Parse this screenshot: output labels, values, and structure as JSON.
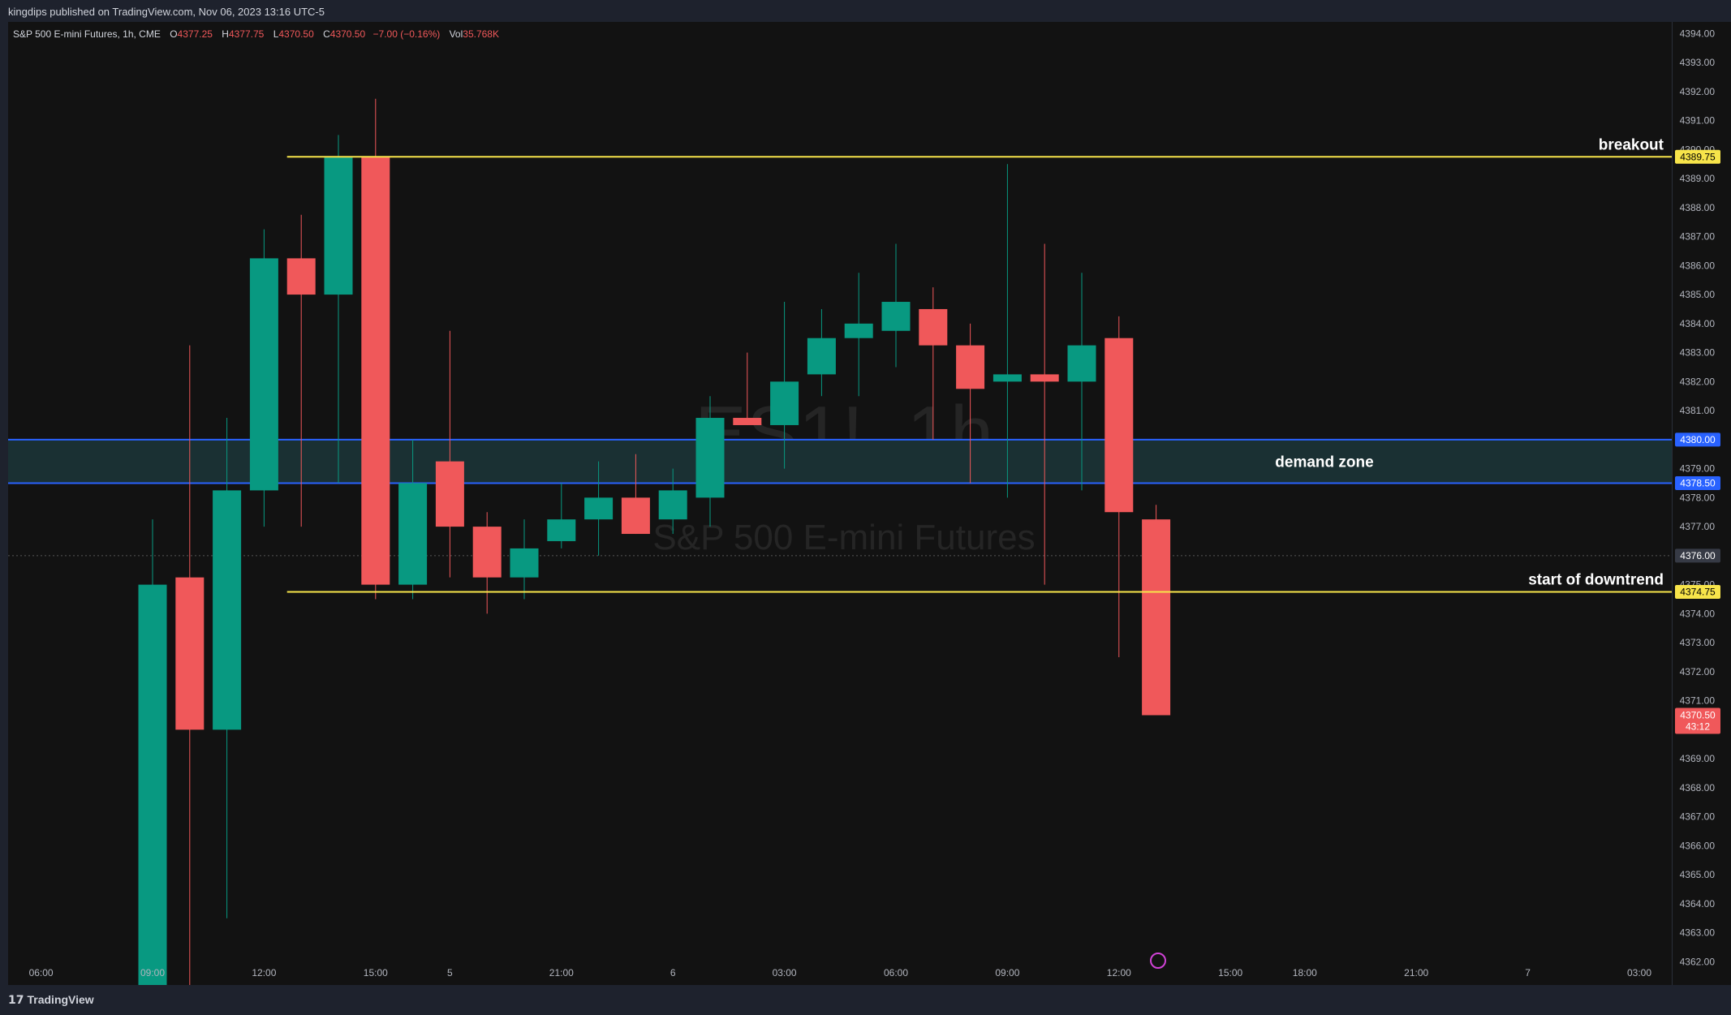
{
  "header": {
    "publish_line": "kingdips published on TradingView.com, Nov 06, 2023 13:16 UTC-5"
  },
  "legend": {
    "symbol": "S&P 500 E-mini Futures, 1h, CME",
    "open_label": "O",
    "open": "4377.25",
    "high_label": "H",
    "high": "4377.75",
    "low_label": "L",
    "low": "4370.50",
    "close_label": "C",
    "close": "4370.50",
    "change": "−7.00 (−0.16%)",
    "vol_label": "Vol",
    "vol": "35.768K"
  },
  "watermark": {
    "symbol": "ES1!, 1h",
    "name": "S&P 500 E-mini Futures"
  },
  "footer": {
    "brand": "TradingView",
    "logo_glyph": "17"
  },
  "colors": {
    "up": "#089981",
    "down": "#f0585a",
    "background": "#121212",
    "horizontal_line": "#f7e44a",
    "zone_border": "#2962ff",
    "zone_fill": "#1a3033"
  },
  "chart_data": {
    "type": "candlestick",
    "title": "",
    "ylim": [
      4361.2,
      4394.4
    ],
    "y_ticks": [
      4362,
      4363,
      4364,
      4365,
      4366,
      4367,
      4368,
      4369,
      4370,
      4371,
      4372,
      4373,
      4374,
      4375,
      4376,
      4377,
      4378,
      4379,
      4380,
      4381,
      4382,
      4383,
      4384,
      4385,
      4386,
      4387,
      4388,
      4389,
      4390,
      4391,
      4392,
      4393,
      4394
    ],
    "x_ticks": [
      {
        "label": "06:00",
        "idx": -3
      },
      {
        "label": "09:00",
        "idx": 0
      },
      {
        "label": "12:00",
        "idx": 3
      },
      {
        "label": "15:00",
        "idx": 6
      },
      {
        "label": "5",
        "idx": 8
      },
      {
        "label": "21:00",
        "idx": 11
      },
      {
        "label": "6",
        "idx": 14
      },
      {
        "label": "03:00",
        "idx": 17
      },
      {
        "label": "06:00",
        "idx": 20
      },
      {
        "label": "09:00",
        "idx": 23
      },
      {
        "label": "12:00",
        "idx": 26
      },
      {
        "label": "15:00",
        "idx": 29
      },
      {
        "label": "18:00",
        "idx": 31
      },
      {
        "label": "21:00",
        "idx": 34
      },
      {
        "label": "7",
        "idx": 37
      },
      {
        "label": "03:00",
        "idx": 40
      }
    ],
    "candles": [
      {
        "o": 4361.0,
        "h": 4377.25,
        "l": 4361.0,
        "c": 4375.0
      },
      {
        "o": 4375.25,
        "h": 4383.25,
        "l": 4361.0,
        "c": 4370.0
      },
      {
        "o": 4370.0,
        "h": 4380.75,
        "l": 4363.5,
        "c": 4378.25
      },
      {
        "o": 4378.25,
        "h": 4387.25,
        "l": 4377.0,
        "c": 4386.25
      },
      {
        "o": 4386.25,
        "h": 4387.75,
        "l": 4377.0,
        "c": 4385.0
      },
      {
        "o": 4385.0,
        "h": 4390.5,
        "l": 4378.5,
        "c": 4389.75
      },
      {
        "o": 4389.75,
        "h": 4391.75,
        "l": 4374.5,
        "c": 4375.0
      },
      {
        "o": 4375.0,
        "h": 4380.0,
        "l": 4374.5,
        "c": 4378.5
      },
      {
        "o": 4379.25,
        "h": 4383.75,
        "l": 4375.25,
        "c": 4377.0
      },
      {
        "o": 4377.0,
        "h": 4377.5,
        "l": 4374.0,
        "c": 4375.25
      },
      {
        "o": 4375.25,
        "h": 4377.25,
        "l": 4374.5,
        "c": 4376.25
      },
      {
        "o": 4376.5,
        "h": 4378.5,
        "l": 4376.25,
        "c": 4377.25
      },
      {
        "o": 4377.25,
        "h": 4379.25,
        "l": 4376.0,
        "c": 4378.0
      },
      {
        "o": 4378.0,
        "h": 4379.5,
        "l": 4376.75,
        "c": 4376.75
      },
      {
        "o": 4377.25,
        "h": 4379.0,
        "l": 4376.75,
        "c": 4378.25
      },
      {
        "o": 4378.0,
        "h": 4381.5,
        "l": 4377.0,
        "c": 4380.75
      },
      {
        "o": 4380.75,
        "h": 4383.0,
        "l": 4380.5,
        "c": 4380.5
      },
      {
        "o": 4380.5,
        "h": 4384.75,
        "l": 4379.0,
        "c": 4382.0
      },
      {
        "o": 4382.25,
        "h": 4384.5,
        "l": 4381.5,
        "c": 4383.5
      },
      {
        "o": 4383.5,
        "h": 4385.75,
        "l": 4381.5,
        "c": 4384.0
      },
      {
        "o": 4383.75,
        "h": 4386.75,
        "l": 4382.5,
        "c": 4384.75
      },
      {
        "o": 4384.5,
        "h": 4385.25,
        "l": 4380.0,
        "c": 4383.25
      },
      {
        "o": 4383.25,
        "h": 4384.0,
        "l": 4378.5,
        "c": 4381.75
      },
      {
        "o": 4382.0,
        "h": 4389.5,
        "l": 4378.0,
        "c": 4382.25
      },
      {
        "o": 4382.25,
        "h": 4386.75,
        "l": 4375.0,
        "c": 4382.0
      },
      {
        "o": 4382.0,
        "h": 4385.75,
        "l": 4378.25,
        "c": 4383.25
      },
      {
        "o": 4383.5,
        "h": 4384.25,
        "l": 4372.5,
        "c": 4377.5
      },
      {
        "o": 4377.25,
        "h": 4377.75,
        "l": 4370.5,
        "c": 4370.5
      }
    ],
    "horizontal_lines": [
      {
        "name": "breakout",
        "price": 4389.75,
        "label": "4389.75",
        "from_idx": 4
      },
      {
        "name": "start of downtrend",
        "price": 4374.75,
        "label": "4374.75",
        "from_idx": 4
      }
    ],
    "zone": {
      "name": "demand zone",
      "top": 4380.0,
      "bottom": 4378.5,
      "top_label": "4380.00",
      "bottom_label": "4378.50"
    },
    "crosshair_price": {
      "price": 4376.0,
      "label": "4376.00"
    },
    "last_price": {
      "price": 4370.5,
      "label": "4370.50",
      "countdown": "43:12"
    }
  }
}
